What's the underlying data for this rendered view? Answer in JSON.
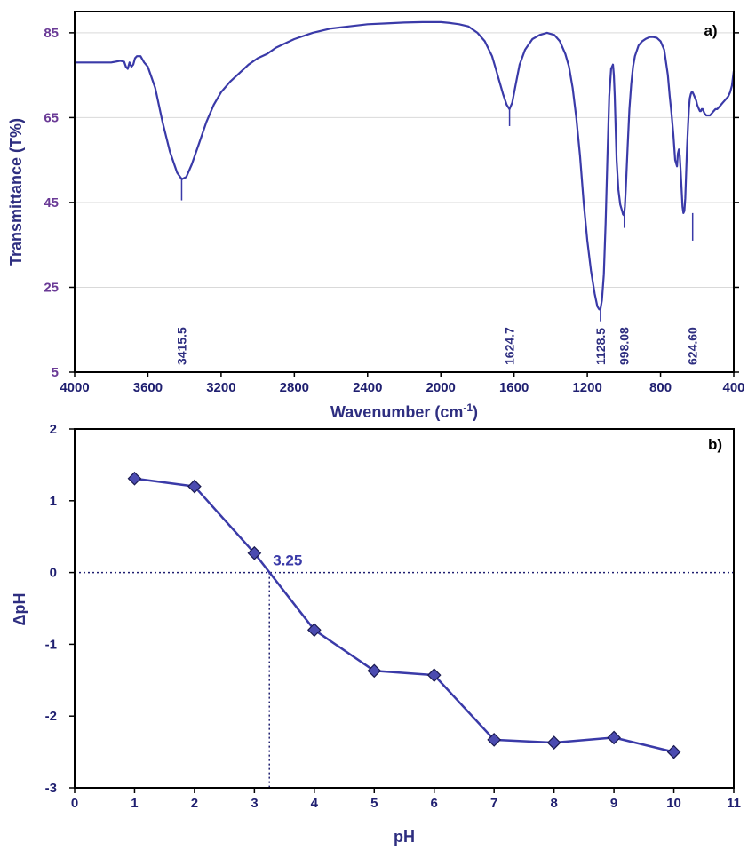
{
  "colors": {
    "series": "#3a3aa8",
    "marker_fill": "#4b4bb0",
    "tick_a": "#6a3a96",
    "tick_b": "#1f1f70",
    "title": "#2e2e80",
    "grid": "#d9d9d9",
    "axis": "#000000"
  },
  "chart_data": [
    {
      "id": "a",
      "type": "line",
      "panel_label": "a)",
      "xlabel_main": "Wavenumber (cm",
      "xlabel_sup": "-1",
      "xlabel_end": ")",
      "ylabel": "Transmittance (T%)",
      "xlim": [
        4000,
        400
      ],
      "ylim": [
        5,
        90
      ],
      "x_ticks": [
        4000,
        3600,
        3200,
        2800,
        2400,
        2000,
        1600,
        1200,
        800,
        400
      ],
      "x_tick_labels": [
        "4000",
        "3600",
        "3200",
        "2800",
        "2400",
        "2000",
        "1600",
        "1200",
        "800",
        "400"
      ],
      "y_ticks": [
        5,
        25,
        45,
        65,
        85
      ],
      "y_tick_labels": [
        "5",
        "25",
        "45",
        "65",
        "85"
      ],
      "grid": "horizontal",
      "series": [
        {
          "x": [
            4000,
            3900,
            3800,
            3750,
            3730,
            3720,
            3710,
            3700,
            3690,
            3680,
            3670,
            3660,
            3640,
            3620,
            3600,
            3560,
            3520,
            3480,
            3440,
            3415,
            3390,
            3360,
            3320,
            3280,
            3240,
            3200,
            3150,
            3100,
            3050,
            3000,
            2950,
            2900,
            2850,
            2800,
            2700,
            2600,
            2500,
            2400,
            2300,
            2200,
            2100,
            2000,
            1950,
            1900,
            1850,
            1800,
            1760,
            1720,
            1700,
            1680,
            1660,
            1640,
            1625,
            1610,
            1590,
            1570,
            1540,
            1500,
            1460,
            1420,
            1380,
            1350,
            1320,
            1300,
            1280,
            1260,
            1240,
            1220,
            1200,
            1180,
            1160,
            1145,
            1135,
            1128,
            1120,
            1110,
            1100,
            1090,
            1080,
            1070,
            1060,
            1055,
            1050,
            1045,
            1040,
            1030,
            1020,
            1010,
            1005,
            1000,
            998,
            995,
            990,
            980,
            970,
            960,
            950,
            940,
            920,
            900,
            880,
            860,
            840,
            820,
            800,
            780,
            760,
            750,
            740,
            730,
            720,
            710,
            705,
            700,
            695,
            690,
            685,
            680,
            675,
            670,
            665,
            660,
            655,
            650,
            645,
            640,
            635,
            630,
            625,
            620,
            615,
            610,
            605,
            600,
            595,
            590,
            585,
            580,
            575,
            570,
            565,
            560,
            550,
            540,
            530,
            520,
            510,
            500,
            490,
            480,
            470,
            460,
            450,
            440,
            430,
            420,
            410,
            400
          ],
          "y": [
            78,
            78,
            78,
            78.4,
            78.2,
            77,
            76.5,
            78,
            77,
            77.5,
            79,
            79.5,
            79.5,
            78,
            77,
            72,
            64,
            57,
            52,
            50.5,
            51,
            54,
            59,
            64,
            68,
            71,
            73.5,
            75.5,
            77.5,
            79,
            80,
            81.5,
            82.5,
            83.5,
            85,
            86,
            86.5,
            87,
            87.2,
            87.4,
            87.5,
            87.5,
            87.3,
            87,
            86.5,
            85,
            83,
            79.5,
            76.5,
            73.5,
            70.5,
            68,
            67,
            68.5,
            73,
            77.5,
            81,
            83.5,
            84.5,
            85,
            84.5,
            83,
            80,
            77,
            72,
            65,
            56,
            45,
            36,
            29,
            23.5,
            20.5,
            19.8,
            20,
            22,
            28,
            40,
            56,
            70,
            76.5,
            77.5,
            75,
            70,
            62,
            55,
            48,
            44.5,
            43,
            42.2,
            42,
            42.5,
            44,
            48,
            58,
            67,
            73,
            77,
            79.5,
            82,
            83,
            83.6,
            84,
            84,
            83.8,
            83,
            81,
            75,
            70,
            66,
            61,
            55,
            53.5,
            56.5,
            57.5,
            56,
            52.5,
            48,
            44,
            42.5,
            43,
            46,
            52,
            58,
            63,
            67,
            69.5,
            70.5,
            71,
            71,
            70.5,
            70,
            69.5,
            69,
            68,
            67.5,
            67,
            66.5,
            66.5,
            67,
            67,
            66.5,
            66,
            65.5,
            65.5,
            65.5,
            66,
            66.5,
            67,
            67,
            67.5,
            68,
            68.5,
            69,
            69.5,
            70,
            71,
            72.5,
            76
          ]
        }
      ],
      "peak_markers": [
        {
          "x": 3415.5,
          "y_top": 50.5,
          "y_bottom": 45.5
        },
        {
          "x": 1624.7,
          "y_top": 67,
          "y_bottom": 63
        },
        {
          "x": 1128.5,
          "y_top": 19.8,
          "y_bottom": 17
        },
        {
          "x": 998.08,
          "y_top": 42,
          "y_bottom": 39
        },
        {
          "x": 624.6,
          "y_top": 42.5,
          "y_bottom": 36
        }
      ],
      "annotations": [
        {
          "text": "3415.5",
          "x": 3415.5
        },
        {
          "text": "1624.7",
          "x": 1624.7
        },
        {
          "text": "1128.5",
          "x": 1128.5
        },
        {
          "text": "998.08",
          "x": 998.08
        },
        {
          "text": "624.60",
          "x": 624.6
        }
      ]
    },
    {
      "id": "b",
      "type": "line",
      "panel_label": "b)",
      "xlabel": "pH",
      "ylabel": "ΔpH",
      "xlim": [
        0,
        11
      ],
      "ylim": [
        -3,
        2
      ],
      "x_ticks": [
        0,
        1,
        2,
        3,
        4,
        5,
        6,
        7,
        8,
        9,
        10,
        11
      ],
      "x_tick_labels": [
        "0",
        "1",
        "2",
        "3",
        "4",
        "5",
        "6",
        "7",
        "8",
        "9",
        "10",
        "11"
      ],
      "y_ticks": [
        -3,
        -2,
        -1,
        0,
        1,
        2
      ],
      "y_tick_labels": [
        "-3",
        "-2",
        "-1",
        "0",
        "1",
        "2"
      ],
      "grid": "none",
      "marker": "diamond",
      "series": [
        {
          "x": [
            1,
            2,
            3,
            4,
            5,
            6,
            7,
            8,
            9,
            10
          ],
          "y": [
            1.31,
            1.2,
            0.27,
            -0.8,
            -1.37,
            -1.43,
            -2.33,
            -2.37,
            -2.3,
            -2.5
          ]
        }
      ],
      "reference_lines": {
        "y": 0,
        "x": 3.25
      },
      "annotations": [
        {
          "text": "3.25",
          "x": 3.25,
          "y": 0
        }
      ]
    }
  ]
}
